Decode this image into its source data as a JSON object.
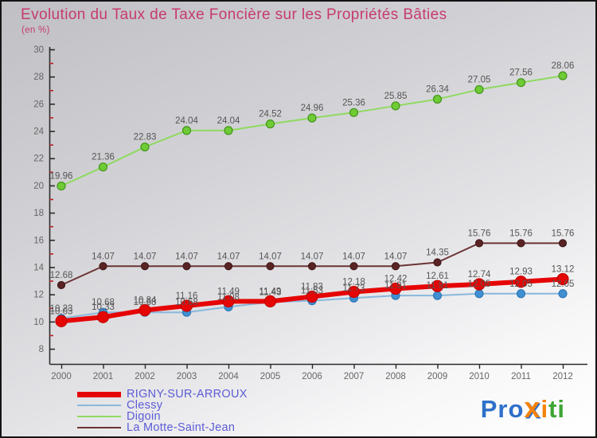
{
  "header": {
    "title": "Evolution du Taux de Taxe Foncière sur les Propriétés Bâties",
    "subtitle": "(en %)"
  },
  "chart_data": {
    "type": "line",
    "title": "Evolution du Taux de Taxe Foncière sur les Propriétés Bâties",
    "xlabel": "",
    "ylabel": "(en %)",
    "categories": [
      "2000",
      "2001",
      "2002",
      "2003",
      "2004",
      "2005",
      "2006",
      "2007",
      "2008",
      "2009",
      "2010",
      "2011",
      "2012"
    ],
    "ylim": [
      8,
      30
    ],
    "yticks_major": [
      8,
      10,
      12,
      14,
      16,
      18,
      20,
      22,
      24,
      26,
      28,
      30
    ],
    "yticks_minor": [
      9,
      11,
      13,
      15,
      17,
      19,
      21,
      23,
      25,
      27,
      29
    ],
    "grid": "off",
    "legend_position": "bottom-left",
    "series": [
      {
        "name": "RIGNY-SUR-ARROUX",
        "line_color": "#e60505",
        "marker_color": "#e60505",
        "marker_stroke": "#c40000",
        "line_width": 6,
        "marker_r": 7,
        "values": [
          10.03,
          10.33,
          10.84,
          11.16,
          11.49,
          11.49,
          11.83,
          12.18,
          12.42,
          12.61,
          12.74,
          12.93,
          13.12
        ]
      },
      {
        "name": "Clessy",
        "line_color": "#88b8dc",
        "marker_color": "#3f8fd2",
        "marker_stroke": "#2f79b5",
        "line_width": 2,
        "marker_r": 5,
        "values": [
          10.23,
          10.68,
          10.68,
          10.68,
          11.08,
          11.43,
          11.53,
          11.73,
          11.91,
          11.91,
          12.05,
          12.05,
          12.05
        ]
      },
      {
        "name": "Digoin",
        "line_color": "#90d961",
        "marker_color": "#6ecb35",
        "marker_stroke": "#44941c",
        "line_width": 2,
        "marker_r": 5,
        "values": [
          19.96,
          21.36,
          22.83,
          24.04,
          24.04,
          24.52,
          24.96,
          25.36,
          25.85,
          26.34,
          27.05,
          27.56,
          28.06
        ]
      },
      {
        "name": "La Motte-Saint-Jean",
        "line_color": "#6b3434",
        "marker_color": "#5a2424",
        "marker_stroke": "#431b1b",
        "line_width": 2,
        "marker_r": 4.5,
        "values": [
          12.68,
          14.07,
          14.07,
          14.07,
          14.07,
          14.07,
          14.07,
          14.07,
          14.07,
          14.35,
          15.76,
          15.76,
          15.76
        ]
      }
    ],
    "colors": {
      "title": "#c73b6b",
      "axis": "#2a2a2a",
      "minor_tick": "#b22222",
      "tick_label": "#666666",
      "data_label": "#555555"
    }
  },
  "legend": {
    "text_color": "#5c5cd6",
    "items": [
      {
        "label": "RIGNY-SUR-ARROUX",
        "color": "#e60505"
      },
      {
        "label": "Clessy",
        "color": "#88b8dc"
      },
      {
        "label": "Digoin",
        "color": "#90d961"
      },
      {
        "label": "La Motte-Saint-Jean",
        "color": "#6b3434"
      }
    ]
  },
  "logo": {
    "name": "Proxiti",
    "parts": [
      {
        "text": "Pro",
        "color": "#2e6fc9"
      },
      {
        "text": "x",
        "color": "#f5820a"
      },
      {
        "text": "i",
        "color": "#f5820a"
      },
      {
        "text": "ti",
        "color": "#3fa535"
      }
    ]
  }
}
